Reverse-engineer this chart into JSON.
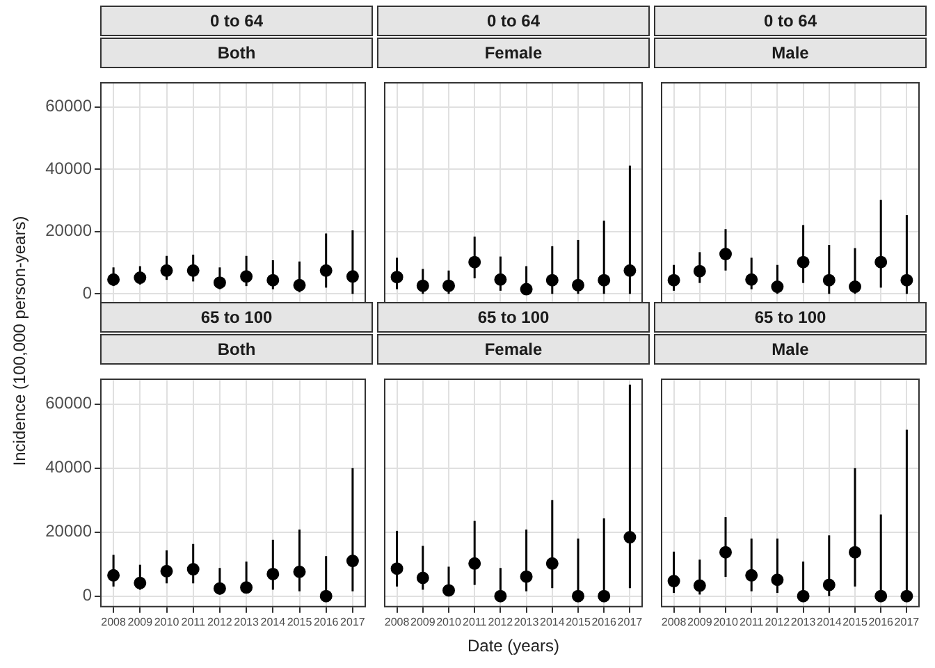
{
  "chart_data": [
    {
      "type": "scatter",
      "title": "0 to 64",
      "subtitle": "Both",
      "categories": [
        "2008",
        "2009",
        "2010",
        "2011",
        "2012",
        "2013",
        "2014",
        "2015",
        "2016",
        "2017"
      ],
      "color": "#000000",
      "marker": "circle",
      "grid": true,
      "tick_labels": "y",
      "ylim": [
        -3500,
        68000
      ],
      "yticks": [
        0,
        20000,
        40000,
        60000
      ],
      "values": [
        4600,
        5200,
        7500,
        7500,
        3600,
        5600,
        4400,
        2800,
        7500,
        5600
      ],
      "errors": [
        [
          2500,
          8500
        ],
        [
          3000,
          8900
        ],
        [
          4500,
          12200
        ],
        [
          4000,
          12600
        ],
        [
          1500,
          8500
        ],
        [
          2500,
          12200
        ],
        [
          1500,
          10800
        ],
        [
          500,
          10400
        ],
        [
          2000,
          19400
        ],
        [
          0,
          20400
        ]
      ]
    },
    {
      "type": "scatter",
      "title": "0 to 64",
      "subtitle": "Female",
      "categories": [
        "2008",
        "2009",
        "2010",
        "2011",
        "2012",
        "2013",
        "2014",
        "2015",
        "2016",
        "2017"
      ],
      "color": "#000000",
      "marker": "circle",
      "grid": true,
      "tick_labels": false,
      "ylim": [
        -3500,
        68000
      ],
      "yticks": [
        0,
        20000,
        40000,
        60000
      ],
      "values": [
        5400,
        2600,
        2600,
        10200,
        4600,
        1500,
        4400,
        2800,
        4400,
        7500
      ],
      "errors": [
        [
          1500,
          11600
        ],
        [
          0,
          8000
        ],
        [
          0,
          7500
        ],
        [
          5000,
          18400
        ],
        [
          1000,
          12000
        ],
        [
          0,
          8900
        ],
        [
          0,
          15300
        ],
        [
          0,
          17300
        ],
        [
          0,
          23500
        ],
        [
          0,
          41200
        ]
      ]
    },
    {
      "type": "scatter",
      "title": "0 to 64",
      "subtitle": "Male",
      "categories": [
        "2008",
        "2009",
        "2010",
        "2011",
        "2012",
        "2013",
        "2014",
        "2015",
        "2016",
        "2017"
      ],
      "color": "#000000",
      "marker": "circle",
      "grid": true,
      "tick_labels": false,
      "ylim": [
        -3500,
        68000
      ],
      "yticks": [
        0,
        20000,
        40000,
        60000
      ],
      "values": [
        4400,
        7300,
        12800,
        4600,
        2300,
        10200,
        4400,
        2300,
        10200,
        4400
      ],
      "errors": [
        [
          1000,
          9300
        ],
        [
          3500,
          13400
        ],
        [
          7500,
          20800
        ],
        [
          1500,
          11600
        ],
        [
          0,
          9300
        ],
        [
          3500,
          22100
        ],
        [
          0,
          15700
        ],
        [
          0,
          14700
        ],
        [
          2000,
          30200
        ],
        [
          0,
          25300
        ]
      ]
    },
    {
      "type": "scatter",
      "title": "65 to 100",
      "subtitle": "Both",
      "ylabel": "Incidence (100,000 person-years)",
      "categories": [
        "2008",
        "2009",
        "2010",
        "2011",
        "2012",
        "2013",
        "2014",
        "2015",
        "2016",
        "2017"
      ],
      "color": "#000000",
      "marker": "circle",
      "grid": true,
      "ylim": [
        -3500,
        68000
      ],
      "yticks": [
        0,
        20000,
        40000,
        60000
      ],
      "values": [
        6500,
        4100,
        7800,
        8400,
        2400,
        2700,
        6900,
        7600,
        0,
        11000
      ],
      "errors": [
        [
          3000,
          12900
        ],
        [
          2000,
          9800
        ],
        [
          4000,
          14300
        ],
        [
          4000,
          16300
        ],
        [
          500,
          8800
        ],
        [
          1000,
          10800
        ],
        [
          2000,
          17600
        ],
        [
          1500,
          20800
        ],
        [
          0,
          12500
        ],
        [
          1500,
          40000
        ]
      ]
    },
    {
      "type": "scatter",
      "title": "65 to 100",
      "subtitle": "Female",
      "xlabel": "Date (years)",
      "categories": [
        "2008",
        "2009",
        "2010",
        "2011",
        "2012",
        "2013",
        "2014",
        "2015",
        "2016",
        "2017"
      ],
      "color": "#000000",
      "marker": "circle",
      "grid": true,
      "tick_labels": "x",
      "ylim": [
        -3500,
        68000
      ],
      "yticks": [
        0,
        20000,
        40000,
        60000
      ],
      "values": [
        8600,
        5700,
        1800,
        10200,
        0,
        6100,
        10200,
        0,
        0,
        18400
      ],
      "errors": [
        [
          3000,
          20400
        ],
        [
          2000,
          15700
        ],
        [
          0,
          9200
        ],
        [
          3500,
          23500
        ],
        [
          0,
          8800
        ],
        [
          1500,
          20800
        ],
        [
          2500,
          30000
        ],
        [
          0,
          18000
        ],
        [
          0,
          24300
        ],
        [
          2500,
          66100
        ]
      ]
    },
    {
      "type": "scatter",
      "title": "65 to 100",
      "subtitle": "Male",
      "categories": [
        "2008",
        "2009",
        "2010",
        "2011",
        "2012",
        "2013",
        "2014",
        "2015",
        "2016",
        "2017"
      ],
      "color": "#000000",
      "marker": "circle",
      "grid": true,
      "tick_labels": "x",
      "ylim": [
        -3500,
        68000
      ],
      "yticks": [
        0,
        20000,
        40000,
        60000
      ],
      "values": [
        4700,
        3300,
        13700,
        6500,
        5100,
        0,
        3500,
        13700,
        0,
        0
      ],
      "errors": [
        [
          1000,
          13900
        ],
        [
          500,
          11400
        ],
        [
          6000,
          24700
        ],
        [
          1500,
          18000
        ],
        [
          1000,
          18000
        ],
        [
          0,
          10800
        ],
        [
          0,
          19000
        ],
        [
          3000,
          40000
        ],
        [
          0,
          25500
        ],
        [
          0,
          52000
        ]
      ]
    }
  ]
}
